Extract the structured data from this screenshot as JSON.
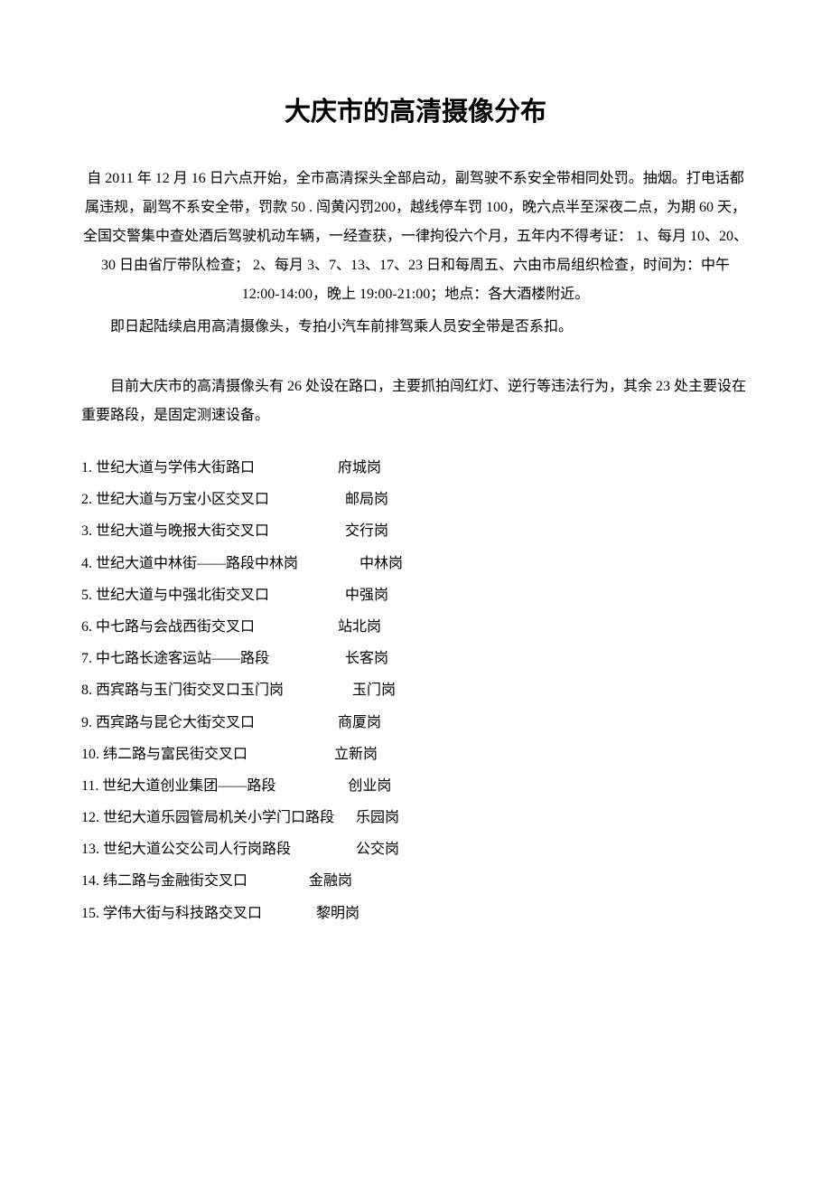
{
  "title": "大庆市的高清摄像分布",
  "para1": "自 2011 年 12 月 16 日六点开始，全市高清探头全部启动，副驾驶不系安全带相同处罚。抽烟。打电话都属违规，副驾不系安全带，罚款 50 . 闯黄闪罚200，越线停车罚 100，晚六点半至深夜二点，为期 60 天，全国交警集中查处酒后驾驶机动车辆，一经查获，一律拘役六个月，五年内不得考证：  1、每月 10、20、30 日由省厅带队检查；  2、每月 3、7、13、17、23 日和每周五、六由市局组织检查，时间为：中午 12:00-14:00，晚上 19:00-21:00；地点：各大酒楼附近。",
  "para2": "即日起陆续启用高清摄像头，专拍小汽车前排驾乘人员安全带是否系扣。",
  "para3": "目前大庆市的高清摄像头有 26 处设在路口，主要抓拍闯红灯、逆行等违法行为，其余 23 处主要设在重要路段，是固定测速设备。",
  "items": [
    {
      "loc": "1. 世纪大道与学伟大街路口",
      "gap": "                       ",
      "post": "府城岗"
    },
    {
      "loc": "2. 世纪大道与万宝小区交叉口",
      "gap": "                     ",
      "post": "邮局岗"
    },
    {
      "loc": "3. 世纪大道与晚报大街交叉口",
      "gap": "                     ",
      "post": "交行岗"
    },
    {
      "loc": "4. 世纪大道中林街——路段中林岗",
      "gap": "                 ",
      "post": "中林岗"
    },
    {
      "loc": "5. 世纪大道与中强北街交叉口",
      "gap": "                     ",
      "post": "中强岗"
    },
    {
      "loc": "6. 中七路与会战西街交叉口",
      "gap": "                       ",
      "post": "站北岗"
    },
    {
      "loc": "7. 中七路长途客运站——路段",
      "gap": "                     ",
      "post": "长客岗"
    },
    {
      "loc": "8. 西宾路与玉门街交叉口玉门岗",
      "gap": "                   ",
      "post": "玉门岗"
    },
    {
      "loc": "9. 西宾路与昆仑大街交叉口",
      "gap": "                       ",
      "post": "商厦岗"
    },
    {
      "loc": "10. 纬二路与富民街交叉口",
      "gap": "                        ",
      "post": "立新岗"
    },
    {
      "loc": "11. 世纪大道创业集团——路段",
      "gap": "                    ",
      "post": "创业岗"
    },
    {
      "loc": "12. 世纪大道乐园管局机关小学门口路段",
      "gap": "      ",
      "post": "乐园岗"
    },
    {
      "loc": "13. 世纪大道公交公司人行岗路段",
      "gap": "                  ",
      "post": "公交岗"
    },
    {
      "loc": "14. 纬二路与金融街交叉口",
      "gap": "                 ",
      "post": "金融岗"
    },
    {
      "loc": "15. 学伟大街与科技路交叉口",
      "gap": "               ",
      "post": "黎明岗"
    }
  ]
}
